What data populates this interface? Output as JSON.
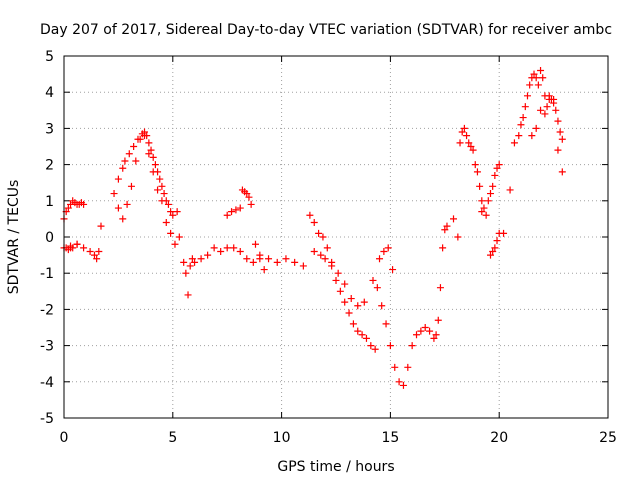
{
  "chart_data": {
    "type": "scatter",
    "title": "Day 207 of 2017, Sidereal Day-to-day VTEC variation (SDTVAR) for receiver ambc",
    "xlabel": "GPS time / hours",
    "ylabel": "SDTVAR / TECUs",
    "xlim": [
      0,
      25
    ],
    "ylim": [
      -5,
      5
    ],
    "xticks": [
      0,
      5,
      10,
      15,
      20,
      25
    ],
    "yticks": [
      -5,
      -4,
      -3,
      -2,
      -1,
      0,
      1,
      2,
      3,
      4,
      5
    ],
    "grid": true,
    "marker": "plus",
    "color": "#ff0000",
    "series": [
      {
        "x": [
          0.0,
          0.1,
          0.2,
          0.3,
          0.4,
          0.5,
          0.6,
          0.7,
          0.8,
          0.9,
          0.6,
          0.4,
          0.3,
          0.2,
          0.1,
          0.0,
          0.3,
          0.6,
          0.9,
          1.2,
          1.4,
          1.5,
          1.6,
          1.7,
          2.3,
          2.5,
          2.7,
          2.8,
          3.0,
          3.2,
          3.4,
          3.6,
          3.7,
          3.8,
          3.9,
          4.0,
          4.1,
          4.2,
          4.3,
          4.4,
          4.5,
          4.6,
          4.7,
          4.8,
          4.9,
          5.0,
          5.2,
          2.5,
          2.7,
          2.9,
          3.1,
          3.3,
          3.5,
          3.7,
          3.9,
          4.1,
          4.3,
          4.5,
          4.7,
          4.9,
          5.1,
          5.3,
          5.5,
          5.6,
          5.7,
          5.8,
          5.9,
          6.0,
          6.3,
          6.6,
          6.9,
          7.2,
          7.5,
          7.8,
          8.1,
          8.4,
          8.7,
          9.0,
          9.4,
          9.8,
          10.2,
          10.6,
          11.0,
          7.5,
          7.7,
          7.9,
          8.1,
          8.2,
          8.3,
          8.4,
          8.5,
          8.6,
          8.8,
          9.0,
          9.2,
          11.3,
          11.5,
          11.7,
          11.9,
          12.1,
          12.3,
          12.5,
          12.7,
          12.9,
          13.1,
          13.3,
          13.5,
          13.7,
          13.9,
          14.1,
          14.3,
          11.5,
          11.8,
          12.0,
          12.3,
          12.6,
          12.9,
          13.2,
          13.5,
          13.8,
          14.2,
          14.4,
          14.6,
          14.8,
          15.0,
          15.2,
          15.4,
          15.6,
          15.8,
          16.0,
          16.2,
          16.4,
          14.5,
          14.7,
          14.9,
          15.1,
          16.6,
          16.8,
          17.0,
          17.1,
          17.2,
          17.3,
          17.4,
          17.5,
          17.6,
          17.9,
          18.1,
          18.2,
          18.3,
          18.4,
          18.5,
          18.6,
          18.7,
          18.8,
          18.9,
          19.0,
          19.1,
          19.2,
          19.2,
          19.3,
          19.4,
          19.5,
          19.6,
          19.7,
          19.8,
          19.9,
          20.0,
          19.6,
          19.7,
          19.8,
          19.9,
          20.0,
          20.2,
          20.5,
          20.7,
          20.9,
          21.0,
          21.1,
          21.2,
          21.3,
          21.4,
          21.5,
          21.6,
          21.7,
          21.8,
          21.9,
          22.0,
          22.1,
          22.2,
          22.3,
          22.4,
          22.5,
          22.6,
          22.7,
          22.8,
          22.9,
          21.5,
          21.7,
          21.9,
          22.1,
          22.3,
          22.5,
          22.7,
          22.9
        ],
        "y": [
          0.5,
          0.7,
          0.8,
          0.9,
          1.0,
          0.95,
          0.9,
          0.9,
          0.95,
          0.9,
          -0.2,
          -0.3,
          -0.3,
          -0.35,
          -0.3,
          -0.3,
          -0.25,
          -0.2,
          -0.3,
          -0.4,
          -0.5,
          -0.6,
          -0.4,
          0.3,
          1.2,
          1.6,
          1.9,
          2.1,
          2.3,
          2.5,
          2.7,
          2.85,
          2.9,
          2.8,
          2.6,
          2.4,
          2.2,
          2.0,
          1.8,
          1.6,
          1.4,
          1.2,
          1.0,
          0.9,
          0.7,
          0.6,
          0.7,
          0.8,
          0.5,
          0.9,
          1.4,
          2.1,
          2.7,
          2.8,
          2.3,
          1.8,
          1.3,
          1.0,
          0.4,
          0.1,
          -0.2,
          0.0,
          -0.7,
          -1.0,
          -1.6,
          -0.8,
          -0.6,
          -0.7,
          -0.6,
          -0.5,
          -0.3,
          -0.4,
          -0.3,
          -0.3,
          -0.4,
          -0.6,
          -0.7,
          -0.6,
          -0.6,
          -0.7,
          -0.6,
          -0.7,
          -0.8,
          0.6,
          0.7,
          0.75,
          0.8,
          1.3,
          1.25,
          1.2,
          1.1,
          0.9,
          -0.2,
          -0.5,
          -0.9,
          0.6,
          0.4,
          0.1,
          0.0,
          -0.3,
          -0.7,
          -1.2,
          -1.5,
          -1.8,
          -2.1,
          -2.4,
          -2.6,
          -2.7,
          -2.8,
          -3.0,
          -3.1,
          -0.4,
          -0.5,
          -0.6,
          -0.8,
          -1.0,
          -1.3,
          -1.7,
          -1.9,
          -1.8,
          -1.2,
          -1.4,
          -1.9,
          -2.4,
          -3.0,
          -3.6,
          -4.0,
          -4.1,
          -3.6,
          -3.0,
          -2.7,
          -2.6,
          -0.6,
          -0.4,
          -0.3,
          -0.9,
          -2.5,
          -2.6,
          -2.8,
          -2.7,
          -2.3,
          -1.4,
          -0.3,
          0.2,
          0.3,
          0.5,
          0.0,
          2.6,
          2.9,
          3.0,
          2.8,
          2.6,
          2.5,
          2.4,
          2.0,
          1.8,
          1.4,
          1.0,
          0.7,
          0.8,
          0.6,
          1.0,
          1.2,
          1.4,
          1.7,
          1.9,
          2.0,
          -0.5,
          -0.4,
          -0.3,
          -0.1,
          0.1,
          0.1,
          1.3,
          2.6,
          2.8,
          3.1,
          3.3,
          3.6,
          3.9,
          4.2,
          4.4,
          4.5,
          4.4,
          4.2,
          4.6,
          4.4,
          3.9,
          3.6,
          3.9,
          3.8,
          3.7,
          3.5,
          3.2,
          2.9,
          2.7,
          2.8,
          3.0,
          3.5,
          3.4,
          3.8,
          3.8,
          2.4,
          1.8
        ]
      }
    ]
  }
}
